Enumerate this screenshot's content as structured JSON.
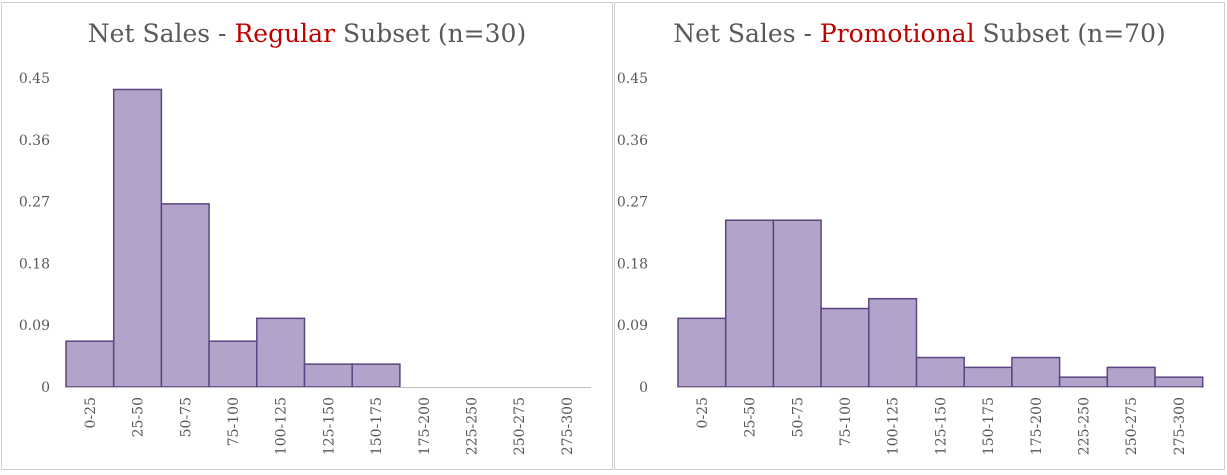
{
  "chart_data": [
    {
      "type": "bar",
      "title_parts": {
        "prefix": "Net Sales - ",
        "highlight": "Regular",
        "suffix": " Subset (n=30)"
      },
      "highlight_color": "#c00000",
      "categories": [
        "0-25",
        "25-50",
        "50-75",
        "75-100",
        "100-125",
        "125-150",
        "150-175",
        "175-200",
        "225-250",
        "250-275",
        "275-300"
      ],
      "values": [
        0.0667,
        0.4333,
        0.2667,
        0.0667,
        0.1,
        0.0333,
        0.0333,
        0,
        0,
        0,
        0
      ],
      "yticks": [
        "0",
        "0.09",
        "0.18",
        "0.27",
        "0.36",
        "0.45"
      ],
      "ylim": [
        0,
        0.45
      ],
      "xlabel": "",
      "ylabel": "",
      "grid": false,
      "bar_fill": "#b1a3c9",
      "bar_stroke": "#5b4582"
    },
    {
      "type": "bar",
      "title_parts": {
        "prefix": "Net Sales - ",
        "highlight": "Promotional",
        "suffix": " Subset (n=70)"
      },
      "highlight_color": "#c00000",
      "categories": [
        "0-25",
        "25-50",
        "50-75",
        "75-100",
        "100-125",
        "125-150",
        "150-175",
        "175-200",
        "225-250",
        "250-275",
        "275-300"
      ],
      "values": [
        0.1,
        0.2429,
        0.2429,
        0.1143,
        0.1286,
        0.0429,
        0.0286,
        0.0429,
        0.0143,
        0.0286,
        0.0143
      ],
      "yticks": [
        "0",
        "0.09",
        "0.18",
        "0.27",
        "0.36",
        "0.45"
      ],
      "ylim": [
        0,
        0.45
      ],
      "xlabel": "",
      "ylabel": "",
      "grid": false,
      "bar_fill": "#b1a3c9",
      "bar_stroke": "#5b4582"
    }
  ]
}
